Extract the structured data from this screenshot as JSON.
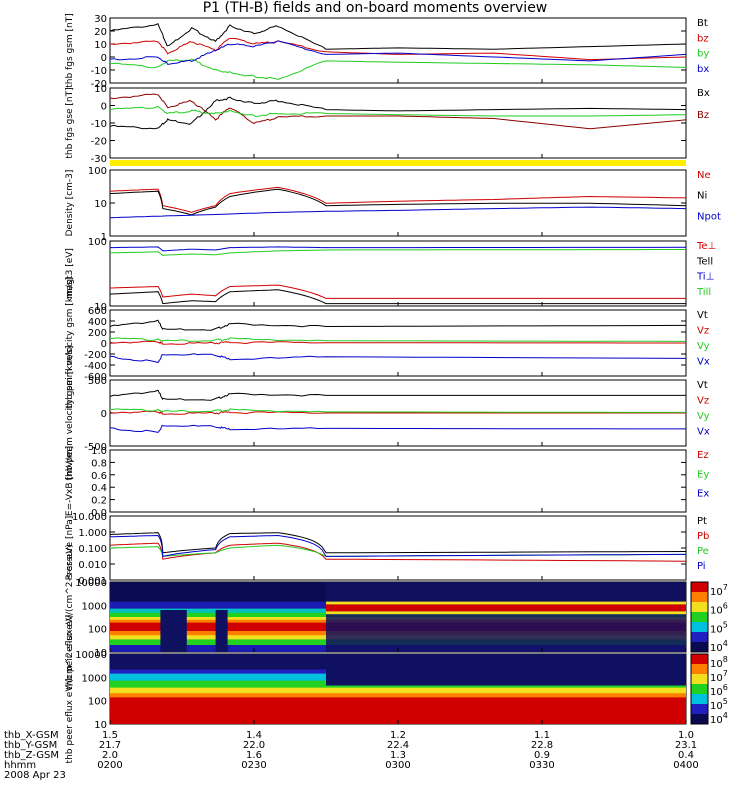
{
  "title": "P1 (TH-B) fields and on-board moments overview",
  "date_label": "2008 Apr 23",
  "colors": {
    "black": "#000000",
    "red": "#d00000",
    "green": "#22cc22",
    "blue": "#0000cc",
    "yellow": "#ffee00"
  },
  "x_axis": {
    "rows": [
      {
        "label": "thb_X-GSM",
        "values": [
          "1.5",
          "1.4",
          "1.2",
          "1.1",
          "1.0"
        ]
      },
      {
        "label": "thb_Y-GSM",
        "values": [
          "21.7",
          "22.0",
          "22.4",
          "22.8",
          "23.1"
        ]
      },
      {
        "label": "thb_Z-GSM",
        "values": [
          "2.0",
          "1.6",
          "1.3",
          "0.9",
          "0.4"
        ]
      },
      {
        "label": "hhmm",
        "values": [
          "0200",
          "0230",
          "0300",
          "0330",
          "0400"
        ]
      }
    ]
  },
  "chart_data": [
    {
      "type": "line",
      "panel": "fgs-gsm",
      "ylabel": "thb fgs gsm [nT]",
      "ylim": [
        -20,
        30
      ],
      "yticks": [
        "30",
        "20",
        "10",
        "0",
        "-10",
        "-20"
      ],
      "series": [
        {
          "name": "Bt",
          "color": "#000000",
          "x": [
            0,
            10,
            12,
            17,
            22,
            25,
            30,
            35,
            45,
            60,
            80,
            100,
            120
          ],
          "values": [
            20,
            25,
            8,
            22,
            12,
            24,
            18,
            24,
            6,
            7,
            6,
            8,
            10
          ]
        },
        {
          "name": "bz",
          "color": "#d00000",
          "x": [
            0,
            10,
            12,
            17,
            22,
            25,
            30,
            35,
            45,
            60,
            80,
            100,
            120
          ],
          "values": [
            10,
            12,
            3,
            12,
            5,
            15,
            10,
            12,
            4,
            2,
            3,
            -2,
            0
          ]
        },
        {
          "name": "by",
          "color": "#22cc22",
          "x": [
            0,
            10,
            12,
            17,
            22,
            25,
            30,
            35,
            45,
            60,
            80,
            100,
            120
          ],
          "values": [
            -5,
            -8,
            -3,
            -2,
            -10,
            -12,
            -15,
            -17,
            -3,
            -4,
            -5,
            -6,
            -8
          ]
        },
        {
          "name": "bx",
          "color": "#0000cc",
          "x": [
            0,
            10,
            12,
            17,
            22,
            25,
            30,
            35,
            45,
            60,
            80,
            100,
            120
          ],
          "values": [
            -2,
            0,
            -5,
            -3,
            5,
            10,
            8,
            12,
            2,
            3,
            0,
            -3,
            2
          ]
        }
      ]
    },
    {
      "type": "line",
      "panel": "fgs-gse",
      "ylabel": "thb fgs gse [nT]",
      "ylim": [
        -35,
        20
      ],
      "yticks": [
        "10",
        "0",
        "-10",
        "-20",
        "-30"
      ],
      "series": [
        {
          "name": "Bx",
          "color": "#000000",
          "x": [
            0,
            10,
            12,
            17,
            22,
            25,
            30,
            35,
            45,
            60,
            80,
            100,
            120
          ],
          "values": [
            -10,
            -12,
            -5,
            -8,
            10,
            12,
            8,
            10,
            3,
            2,
            3,
            4,
            3
          ]
        },
        {
          "name": "Bz",
          "color": "#8b0000",
          "x": [
            0,
            10,
            12,
            17,
            22,
            25,
            30,
            35,
            45,
            60,
            80,
            100,
            120
          ],
          "values": [
            12,
            15,
            5,
            10,
            -5,
            5,
            -8,
            -3,
            -2,
            -2,
            -4,
            -12,
            -5
          ]
        },
        {
          "name": "",
          "color": "#22cc22",
          "x": [
            0,
            10,
            12,
            17,
            22,
            25,
            30,
            35,
            45,
            60,
            80,
            100,
            120
          ],
          "values": [
            3,
            5,
            0,
            2,
            0,
            2,
            -2,
            0,
            0,
            -1,
            -2,
            -2,
            -1
          ]
        }
      ]
    },
    {
      "type": "line",
      "panel": "density",
      "scale": "log",
      "ylabel": "Density [cm-3]",
      "ylim": [
        1,
        150
      ],
      "yticks": [
        "100",
        "10",
        "1"
      ],
      "series": [
        {
          "name": "Ne",
          "color": "#d00000",
          "x": [
            0,
            10,
            11,
            17,
            22,
            25,
            35,
            45,
            60,
            80,
            100,
            120
          ],
          "values": [
            30,
            35,
            10,
            6,
            10,
            25,
            40,
            12,
            14,
            16,
            20,
            18
          ]
        },
        {
          "name": "Ni",
          "color": "#000000",
          "x": [
            0,
            10,
            11,
            17,
            22,
            25,
            35,
            45,
            60,
            80,
            100,
            120
          ],
          "values": [
            25,
            30,
            8,
            5,
            9,
            20,
            35,
            10,
            11,
            12,
            12,
            10
          ]
        },
        {
          "name": "Npot",
          "color": "#0000cc",
          "x": [
            0,
            10,
            20,
            35,
            45,
            60,
            80,
            100,
            120
          ],
          "values": [
            4,
            4.5,
            5,
            6,
            6.5,
            7,
            8,
            9,
            8
          ]
        }
      ]
    },
    {
      "type": "line",
      "panel": "temperature",
      "scale": "log",
      "ylabel": "magt3 [eV]",
      "ylim": [
        10,
        1500
      ],
      "yticks": [
        "100",
        "10"
      ],
      "series": [
        {
          "name": "Te⊥",
          "color": "#d00000",
          "x": [
            0,
            10,
            11,
            17,
            22,
            25,
            35,
            45,
            120
          ],
          "values": [
            40,
            45,
            20,
            25,
            22,
            45,
            50,
            18,
            18
          ]
        },
        {
          "name": "Tell",
          "color": "#000000",
          "x": [
            0,
            10,
            11,
            17,
            22,
            25,
            35,
            45,
            120
          ],
          "values": [
            25,
            30,
            12,
            15,
            14,
            30,
            35,
            12,
            12
          ]
        },
        {
          "name": "Ti⊥",
          "color": "#0000cc",
          "x": [
            0,
            10,
            11,
            17,
            22,
            25,
            35,
            45,
            120
          ],
          "values": [
            900,
            950,
            700,
            800,
            750,
            900,
            950,
            900,
            920
          ]
        },
        {
          "name": "Till",
          "color": "#22cc22",
          "x": [
            0,
            10,
            11,
            17,
            22,
            25,
            35,
            45,
            120
          ],
          "values": [
            600,
            650,
            500,
            550,
            520,
            600,
            700,
            750,
            780
          ]
        }
      ]
    },
    {
      "type": "line",
      "panel": "peim-velocity",
      "ylabel": "thb peim velocity gsm [km/s]",
      "ylim": [
        -600,
        600
      ],
      "yticks": [
        "600",
        "400",
        "200",
        "0",
        "-200",
        "-400",
        "-600"
      ],
      "series": [
        {
          "name": "Vt",
          "color": "#000000",
          "x": [
            0,
            10,
            11,
            22,
            25,
            45,
            120
          ],
          "values": [
            300,
            400,
            250,
            250,
            350,
            300,
            320
          ]
        },
        {
          "name": "Vz",
          "color": "#d00000",
          "x": [
            0,
            10,
            11,
            22,
            25,
            45,
            120
          ],
          "values": [
            10,
            20,
            -10,
            0,
            10,
            5,
            0
          ]
        },
        {
          "name": "Vy",
          "color": "#22cc22",
          "x": [
            0,
            10,
            11,
            22,
            25,
            45,
            120
          ],
          "values": [
            80,
            60,
            40,
            50,
            80,
            40,
            30
          ]
        },
        {
          "name": "Vx",
          "color": "#0000cc",
          "x": [
            0,
            10,
            11,
            22,
            25,
            45,
            120
          ],
          "values": [
            -250,
            -350,
            -200,
            -220,
            -300,
            -250,
            -280
          ]
        }
      ]
    },
    {
      "type": "line",
      "panel": "peem-velocity",
      "ylabel": "thb peem velocity gsm [km/s]",
      "ylim": [
        -600,
        600
      ],
      "yticks": [
        "500",
        "0",
        "-500"
      ],
      "series": [
        {
          "name": "Vt",
          "color": "#000000",
          "x": [
            0,
            10,
            11,
            22,
            25,
            45,
            120
          ],
          "values": [
            300,
            400,
            250,
            250,
            350,
            320,
            320
          ]
        },
        {
          "name": "Vz",
          "color": "#d00000",
          "x": [
            0,
            10,
            11,
            22,
            25,
            45,
            120
          ],
          "values": [
            10,
            20,
            -10,
            0,
            10,
            0,
            0
          ]
        },
        {
          "name": "Vy",
          "color": "#22cc22",
          "x": [
            0,
            10,
            11,
            22,
            25,
            45,
            120
          ],
          "values": [
            60,
            50,
            30,
            40,
            60,
            20,
            10
          ]
        },
        {
          "name": "Vx",
          "color": "#0000cc",
          "x": [
            0,
            10,
            11,
            22,
            25,
            45,
            120
          ],
          "values": [
            -280,
            -350,
            -220,
            -250,
            -300,
            -280,
            -290
          ]
        }
      ]
    },
    {
      "type": "line",
      "panel": "e-field",
      "ylabel": "E=-VxB [mV/m]",
      "ylim": [
        0,
        1
      ],
      "yticks": [
        "1.0",
        "0.8",
        "0.6",
        "0.4",
        "0.2",
        "0.0"
      ],
      "series": [
        {
          "name": "Ez",
          "color": "#d00000",
          "x": [],
          "values": []
        },
        {
          "name": "Ey",
          "color": "#22cc22",
          "x": [],
          "values": []
        },
        {
          "name": "Ex",
          "color": "#0000cc",
          "x": [],
          "values": []
        }
      ]
    },
    {
      "type": "line",
      "panel": "pressure",
      "scale": "log",
      "ylabel": "Pressure [nPa]",
      "ylim": [
        0.001,
        10
      ],
      "yticks": [
        "10.000",
        "1.000",
        "0.100",
        "0.010",
        "0.001"
      ],
      "series": [
        {
          "name": "Pt",
          "color": "#000000",
          "x": [
            0,
            10,
            11,
            22,
            25,
            35,
            45,
            120
          ],
          "values": [
            0.7,
            0.9,
            0.05,
            0.1,
            0.8,
            0.9,
            0.05,
            0.06
          ]
        },
        {
          "name": "Pb",
          "color": "#d00000",
          "x": [
            0,
            10,
            11,
            22,
            25,
            35,
            45,
            120
          ],
          "values": [
            0.15,
            0.2,
            0.02,
            0.05,
            0.15,
            0.2,
            0.02,
            0.015
          ]
        },
        {
          "name": "Pe",
          "color": "#22cc22",
          "x": [
            0,
            10,
            11,
            22,
            25,
            35,
            45,
            120
          ],
          "values": [
            0.1,
            0.12,
            0.03,
            0.05,
            0.1,
            0.15,
            0.03,
            0.04
          ]
        },
        {
          "name": "Pi",
          "color": "#0000cc",
          "x": [
            0,
            10,
            11,
            22,
            25,
            35,
            45,
            120
          ],
          "values": [
            0.5,
            0.6,
            0.03,
            0.08,
            0.5,
            0.6,
            0.03,
            0.04
          ]
        }
      ]
    },
    {
      "type": "heatmap",
      "panel": "peir-eflux",
      "ylabel": "thb peir eflux eV/(cm^2-s-sr-eV)",
      "yticks": [
        "10000",
        "1000",
        "100",
        "10"
      ],
      "colorbar_ticks": [
        "10",
        "10",
        "10",
        "10"
      ],
      "colorbar_exponents": [
        "7",
        "6",
        "5",
        "4"
      ]
    },
    {
      "type": "heatmap",
      "panel": "peer-eflux",
      "ylabel": "thb peer eflux eV/(cm^2-s-sr-eV)",
      "yticks": [
        "10000",
        "1000",
        "100",
        "10"
      ],
      "colorbar_ticks": [
        "10",
        "10",
        "10",
        "10",
        "10"
      ],
      "colorbar_exponents": [
        "8",
        "7",
        "6",
        "5",
        "4"
      ]
    }
  ]
}
